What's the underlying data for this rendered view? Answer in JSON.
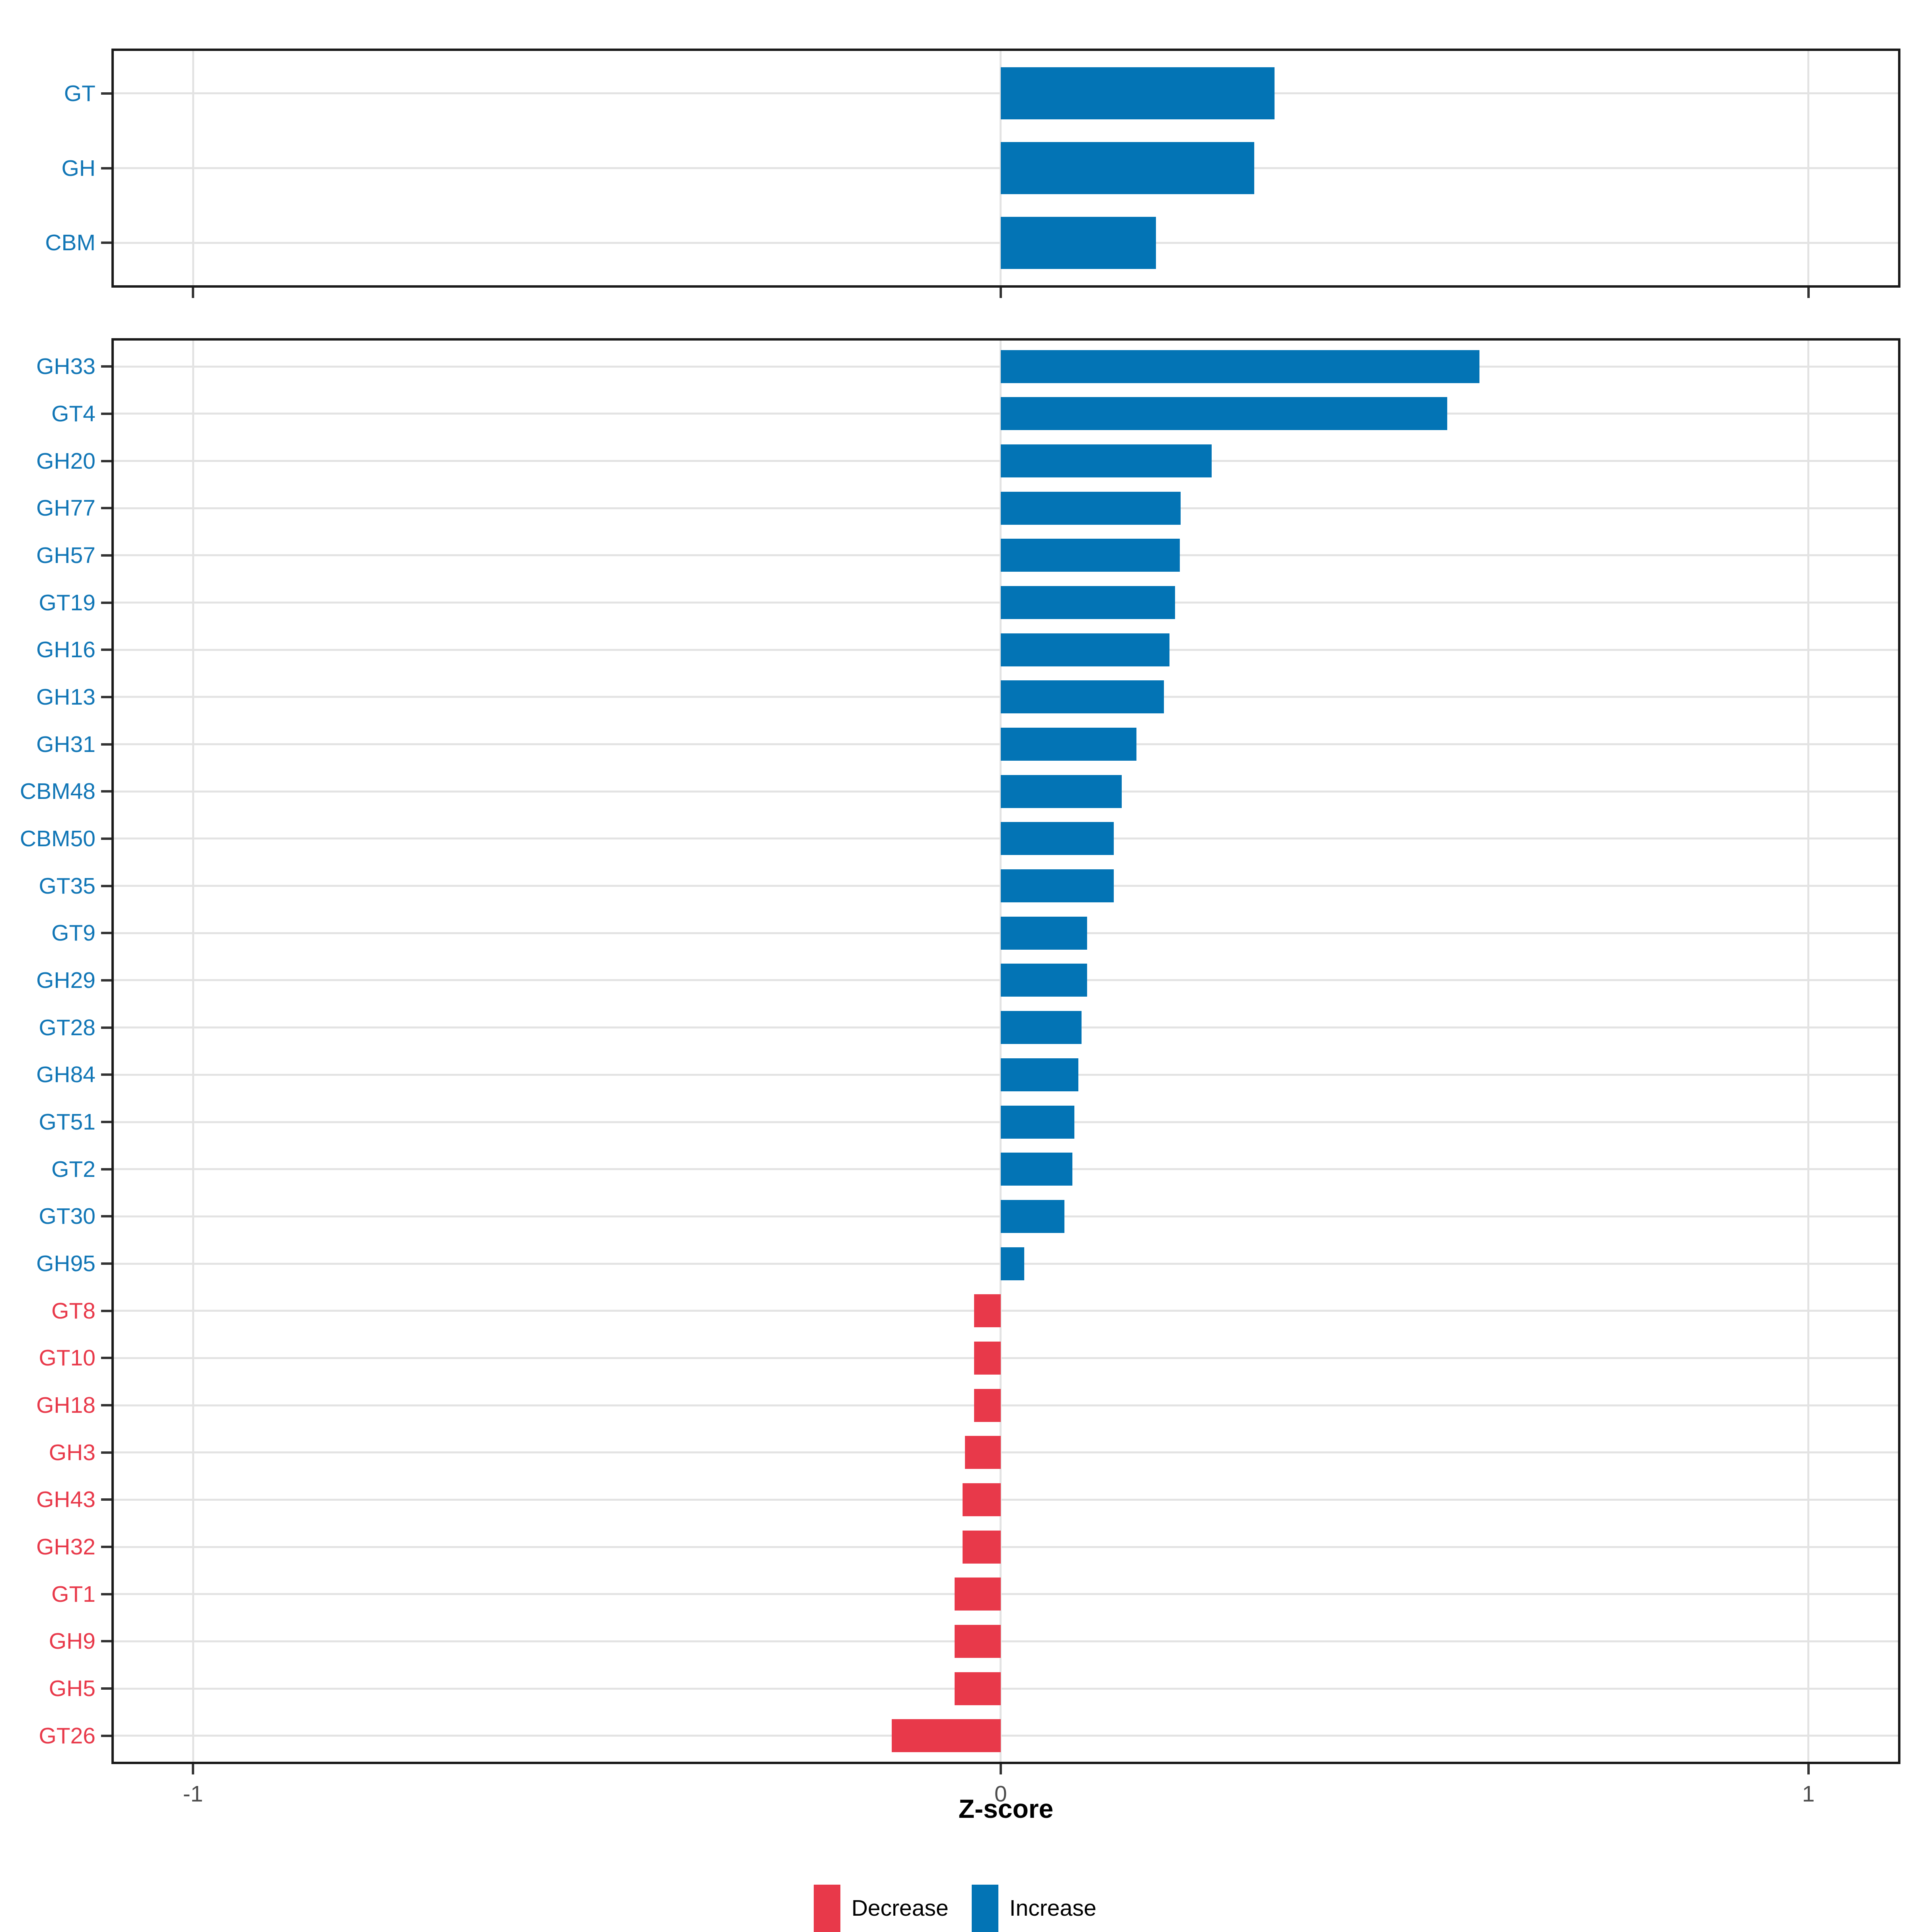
{
  "figure": {
    "background": "#FFFFFF",
    "axis": {
      "label": "Z-score",
      "tick_labels": [
        "-1",
        "0",
        "1"
      ],
      "tick_values": [
        -1,
        0,
        1
      ],
      "range": [
        -1.101,
        1.114
      ]
    },
    "legend": [
      {
        "label": "Decrease",
        "color": "#E8394A"
      },
      {
        "label": "Increase",
        "color": "#0374B5"
      }
    ],
    "colors": {
      "increase": "#0374B5",
      "decrease": "#E8394A",
      "label_increase": "#1176B6",
      "label_decrease": "#E8394A",
      "grid": "#E3E3E3",
      "panel_border": "#1A1A1A",
      "tick": "#333333",
      "tick_label": "#4D4D4D"
    }
  },
  "chart_data": [
    {
      "type": "bar",
      "orientation": "horizontal",
      "panel": "top",
      "title": "",
      "xlabel": "Z-score",
      "ylabel": "",
      "xlim": [
        -1.101,
        1.114
      ],
      "grid": true,
      "categories": [
        "GT",
        "GH",
        "CBM"
      ],
      "values": [
        0.339,
        0.314,
        0.192
      ]
    },
    {
      "type": "bar",
      "orientation": "horizontal",
      "panel": "bottom",
      "title": "",
      "xlabel": "Z-score",
      "ylabel": "",
      "xlim": [
        -1.101,
        1.114
      ],
      "grid": true,
      "legend_position": "bottom",
      "categories": [
        "GH33",
        "GT4",
        "GH20",
        "GH77",
        "GH57",
        "GT19",
        "GH16",
        "GH13",
        "GH31",
        "CBM48",
        "CBM50",
        "GT35",
        "GT9",
        "GH29",
        "GT28",
        "GH84",
        "GT51",
        "GT2",
        "GT30",
        "GH95",
        "GT8",
        "GT10",
        "GH18",
        "GH3",
        "GH43",
        "GH32",
        "GT1",
        "GH9",
        "GH5",
        "GT26"
      ],
      "values": [
        0.593,
        0.553,
        0.261,
        0.223,
        0.222,
        0.216,
        0.209,
        0.202,
        0.168,
        0.15,
        0.14,
        0.14,
        0.107,
        0.107,
        0.1,
        0.096,
        0.091,
        0.089,
        0.079,
        0.029,
        -0.033,
        -0.033,
        -0.033,
        -0.044,
        -0.047,
        -0.047,
        -0.057,
        -0.057,
        -0.057,
        -0.135
      ]
    }
  ]
}
